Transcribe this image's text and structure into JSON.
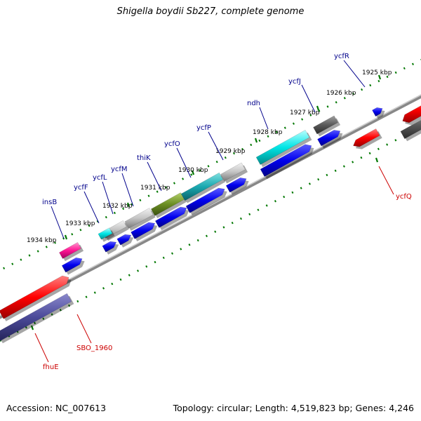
{
  "header": {
    "title": "Shigella boydii Sb227, complete genome"
  },
  "footer": {
    "accession": "Accession: NC_007613",
    "summary": "Topology: circular; Length: 4,519,823 bp; Genes: 4,246"
  },
  "ticks": [
    "1925 kbp",
    "1926 kbp",
    "1927 kbp",
    "1928 kbp",
    "1929 kbp",
    "1930 kbp",
    "1931 kbp",
    "1932 kbp",
    "1933 kbp",
    "1934 kbp"
  ],
  "genes": [
    {
      "name": "ycfR",
      "strand": "forward"
    },
    {
      "name": "ycfJ",
      "strand": "forward"
    },
    {
      "name": "ndh",
      "strand": "forward"
    },
    {
      "name": "ycfP",
      "strand": "forward"
    },
    {
      "name": "ycfO",
      "strand": "forward"
    },
    {
      "name": "thiK",
      "strand": "forward"
    },
    {
      "name": "ycfM",
      "strand": "forward"
    },
    {
      "name": "ycfL",
      "strand": "forward"
    },
    {
      "name": "ycfF",
      "strand": "forward"
    },
    {
      "name": "insB",
      "strand": "forward"
    },
    {
      "name": "ycfQ",
      "strand": "reverse"
    },
    {
      "name": "SBO_1960",
      "strand": "reverse"
    },
    {
      "name": "fhuE",
      "strand": "reverse"
    }
  ],
  "colors": {
    "forward_label": "#00008b",
    "reverse_label": "#cc0000",
    "cds": "#0000ee",
    "reverse_feature": "#ff0000",
    "backbone": "#888888",
    "tick": "#007700"
  }
}
